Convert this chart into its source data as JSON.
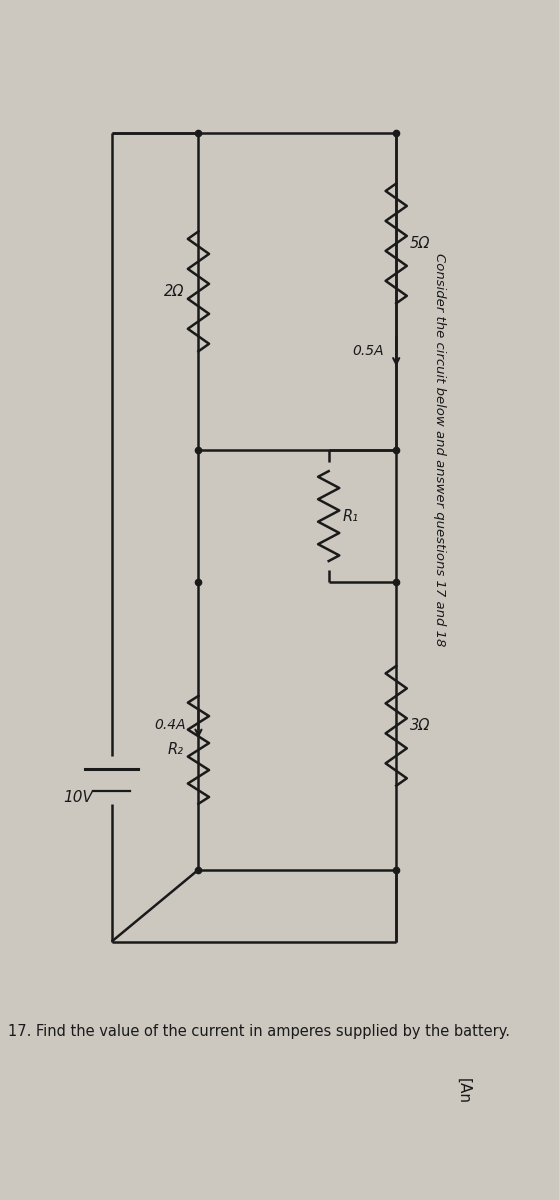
{
  "title": "Consider the circuit below and answer questions 17 and 18",
  "question": "17. Find the value of the current in amperes supplied by the battery.",
  "answer_bracket": "[An",
  "bg_color": "#ccc8c0",
  "line_color": "#1a1a1a",
  "text_color": "#1a1a1a",
  "fig_width": 5.59,
  "fig_height": 12.0,
  "components": {
    "R_5ohm": "5Ω",
    "R_2ohm": "2Ω",
    "R1": "R₁",
    "R_3ohm": "3Ω",
    "R2": "R₂",
    "battery": "10V",
    "I1": "0.5A",
    "I2": "0.4A"
  }
}
